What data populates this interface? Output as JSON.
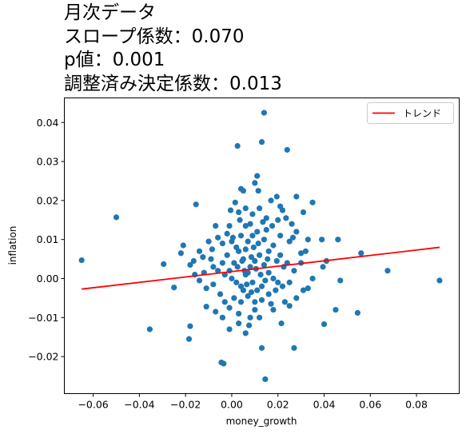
{
  "title_lines": [
    "月次データ",
    "スロープ係数：0.070",
    "p値：0.001",
    "調整済み決定係数：0.013"
  ],
  "chart_data": {
    "type": "scatter",
    "title": "月次データ\nスロープ係数：0.070\np値：0.001\n調整済み決定係数：0.013",
    "xlabel": "money_growth",
    "ylabel": "inflation",
    "xlim": [
      -0.0725,
      0.0985
    ],
    "ylim": [
      -0.0295,
      0.0463
    ],
    "x_ticks": [
      -0.06,
      -0.04,
      -0.02,
      0.0,
      0.02,
      0.04,
      0.06,
      0.08
    ],
    "x_tick_labels": [
      "−0.06",
      "−0.04",
      "−0.02",
      "0.00",
      "0.02",
      "0.04",
      "0.06",
      "0.08"
    ],
    "y_ticks": [
      -0.02,
      -0.01,
      0.0,
      0.01,
      0.02,
      0.03,
      0.04
    ],
    "y_tick_labels": [
      "−0.02",
      "−0.01",
      "0.00",
      "0.01",
      "0.02",
      "0.03",
      "0.04"
    ],
    "grid": false,
    "legend": {
      "position": "upper right",
      "entries": [
        "トレンド"
      ]
    },
    "colors": {
      "points": "#1f77b4",
      "trend": "#ff0000"
    },
    "trend_line": {
      "name": "トレンド",
      "x": [
        -0.065,
        0.09
      ],
      "y": [
        -0.0027,
        0.008
      ]
    },
    "points": [
      [
        0.014,
        0.0425
      ],
      [
        0.013,
        0.035
      ],
      [
        0.0025,
        0.034
      ],
      [
        0.024,
        0.033
      ],
      [
        0.011,
        0.0263
      ],
      [
        0.01,
        0.0245
      ],
      [
        0.0115,
        0.0225
      ],
      [
        0.004,
        0.023
      ],
      [
        0.005,
        0.0225
      ],
      [
        0.028,
        0.021
      ],
      [
        0.035,
        0.0195
      ],
      [
        0.0195,
        0.021
      ],
      [
        0.017,
        0.02
      ],
      [
        0.022,
        0.0175
      ],
      [
        -0.05,
        0.0157
      ],
      [
        -0.0155,
        0.019
      ],
      [
        0.0015,
        0.0195
      ],
      [
        0.0235,
        0.0155
      ],
      [
        -0.007,
        0.0135
      ],
      [
        0.031,
        0.017
      ],
      [
        0.003,
        0.017
      ],
      [
        0.006,
        0.018
      ],
      [
        0.009,
        0.0165
      ],
      [
        -0.065,
        0.0047
      ],
      [
        -0.0295,
        0.0037
      ],
      [
        -0.025,
        -0.0023
      ],
      [
        -0.022,
        0.0065
      ],
      [
        -0.021,
        0.0085
      ],
      [
        -0.018,
        0.0035
      ],
      [
        -0.0165,
        0.0045
      ],
      [
        -0.0125,
        0.0055
      ],
      [
        -0.0085,
        0.0075
      ],
      [
        0.039,
        0.01
      ],
      [
        0.046,
        0.01
      ],
      [
        0.056,
        0.0065
      ],
      [
        0.0675,
        0.002
      ],
      [
        0.09,
        -0.0005
      ],
      [
        0.047,
        -0.0005
      ],
      [
        0.041,
        0.0045
      ],
      [
        0.0395,
        0.003
      ],
      [
        0.045,
        -0.008
      ],
      [
        0.0545,
        -0.0088
      ],
      [
        0.04,
        -0.0117
      ],
      [
        0.027,
        -0.0178
      ],
      [
        0.0215,
        -0.0115
      ],
      [
        0.013,
        -0.0178
      ],
      [
        0.006,
        -0.014
      ],
      [
        0.0145,
        -0.0258
      ],
      [
        -0.0045,
        -0.0215
      ],
      [
        -0.0035,
        -0.0218
      ],
      [
        -0.0185,
        -0.0155
      ],
      [
        -0.018,
        -0.0122
      ],
      [
        -0.0355,
        -0.013
      ],
      [
        -0.011,
        -0.0072
      ],
      [
        -0.007,
        -0.0085
      ],
      [
        -0.001,
        -0.013
      ],
      [
        0.003,
        -0.009
      ],
      [
        0.008,
        -0.01
      ],
      [
        0.012,
        -0.01
      ],
      [
        0.018,
        -0.008
      ],
      [
        0.023,
        -0.006
      ],
      [
        0.028,
        -0.005
      ],
      [
        0.031,
        -0.003
      ],
      [
        0.035,
        0.0
      ],
      [
        0.03,
        0.0065
      ],
      [
        0.028,
        0.012
      ],
      [
        0.033,
        0.01
      ],
      [
        0.025,
        0.0095
      ],
      [
        0.021,
        0.011
      ],
      [
        0.0175,
        0.0135
      ],
      [
        0.015,
        0.0155
      ],
      [
        0.012,
        0.018
      ],
      [
        0.008,
        0.014
      ],
      [
        0.006,
        0.0135
      ],
      [
        -0.002,
        0.0115
      ],
      [
        -0.004,
        0.009
      ],
      [
        -0.006,
        0.0105
      ],
      [
        -0.01,
        0.0095
      ],
      [
        -0.014,
        0.007
      ],
      [
        -0.016,
        0.001
      ],
      [
        -0.012,
        0.0015
      ],
      [
        -0.008,
        -0.0015
      ],
      [
        -0.005,
        -0.004
      ],
      [
        -0.003,
        -0.006
      ],
      [
        -0.001,
        -0.0075
      ],
      [
        0.001,
        -0.005
      ],
      [
        0.004,
        -0.006
      ],
      [
        0.005,
        -0.003
      ],
      [
        0.007,
        -0.0045
      ],
      [
        0.01,
        -0.006
      ],
      [
        0.013,
        -0.0055
      ],
      [
        0.016,
        -0.004
      ],
      [
        0.019,
        -0.003
      ],
      [
        0.022,
        -0.002
      ],
      [
        0.025,
        -0.001
      ],
      [
        0.027,
        0.002
      ],
      [
        0.024,
        0.004
      ],
      [
        0.021,
        0.006
      ],
      [
        0.018,
        0.0085
      ],
      [
        0.016,
        0.007
      ],
      [
        0.014,
        0.01
      ],
      [
        0.011,
        0.012
      ],
      [
        0.009,
        0.011
      ],
      [
        0.007,
        0.0095
      ],
      [
        0.004,
        0.011
      ],
      [
        0.002,
        0.008
      ],
      [
        0.0,
        0.0095
      ],
      [
        -0.002,
        0.006
      ],
      [
        -0.004,
        0.004
      ],
      [
        -0.006,
        0.002
      ],
      [
        -0.008,
        0.003
      ],
      [
        -0.003,
        0.001
      ],
      [
        0.0,
        0.0
      ],
      [
        0.002,
        -0.001
      ],
      [
        0.004,
        -0.002
      ],
      [
        0.006,
        0.001
      ],
      [
        0.008,
        0.003
      ],
      [
        0.01,
        0.0045
      ],
      [
        0.012,
        0.006
      ],
      [
        0.014,
        0.0035
      ],
      [
        0.016,
        0.0015
      ],
      [
        0.018,
        0.0
      ],
      [
        0.02,
        -0.001
      ],
      [
        0.013,
        -0.002
      ],
      [
        0.011,
        -0.003
      ],
      [
        0.009,
        -0.001
      ],
      [
        0.007,
        0.0015
      ],
      [
        0.005,
        0.005
      ],
      [
        0.003,
        0.007
      ],
      [
        0.001,
        0.004
      ],
      [
        -0.001,
        0.002
      ],
      [
        0.006,
        0.0075
      ],
      [
        0.0085,
        0.0055
      ],
      [
        0.0105,
        0.0025
      ],
      [
        0.0125,
        0.001
      ],
      [
        0.0145,
        -0.0005
      ],
      [
        0.0065,
        -0.0015
      ],
      [
        0.0025,
        0.003
      ],
      [
        0.0045,
        0.0045
      ],
      [
        0.0095,
        0.008
      ],
      [
        0.0115,
        0.009
      ],
      [
        0.0155,
        0.005
      ],
      [
        0.0195,
        0.0045
      ],
      [
        0.0225,
        0.003
      ],
      [
        0.0035,
        0.015
      ],
      [
        -0.001,
        0.0135
      ],
      [
        0.015,
        0.0125
      ],
      [
        0.02,
        0.015
      ],
      [
        0.026,
        0.014
      ],
      [
        0.03,
        0.004
      ],
      [
        0.032,
        0.007
      ],
      [
        -0.009,
        0.005
      ],
      [
        -0.011,
        -0.0025
      ],
      [
        -0.014,
        -0.0005
      ],
      [
        -0.004,
        -0.01
      ],
      [
        0.003,
        -0.0115
      ],
      [
        0.01,
        -0.008
      ],
      [
        0.017,
        -0.0065
      ],
      [
        0.025,
        -0.007
      ],
      [
        0.033,
        -0.0025
      ],
      [
        0.0075,
        -0.012
      ],
      [
        -0.0005,
        0.0175
      ],
      [
        0.021,
        0.0185
      ],
      [
        0.0265,
        0.0105
      ],
      [
        0.0005,
        0.0105
      ],
      [
        0.0135,
        0.0145
      ],
      [
        0.0055,
        0.002
      ],
      [
        0.0085,
        -0.0035
      ]
    ]
  }
}
